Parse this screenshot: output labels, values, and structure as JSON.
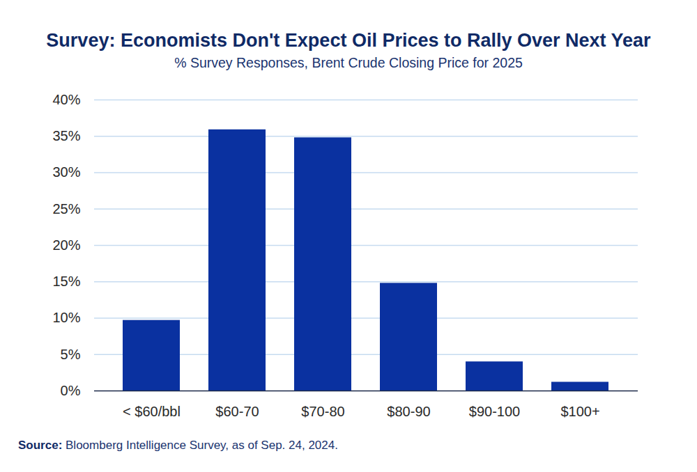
{
  "chart_data": {
    "type": "bar",
    "title": "Survey: Economists Don't Expect Oil Prices to Rally Over Next Year",
    "subtitle": "% Survey Responses, Brent Crude Closing Price for 2025",
    "caption": {
      "label": "Source:",
      "text": "Bloomberg Intelligence Survey, as of Sep. 24, 2024."
    },
    "categories": [
      "< $60/bbl",
      "$60-70",
      "$70-80",
      "$80-90",
      "$90-100",
      "$100+"
    ],
    "values": [
      9.7,
      35.9,
      34.8,
      14.8,
      4.0,
      1.2
    ],
    "color": "#0a31a0",
    "ylim": [
      0,
      40
    ],
    "yticks": [
      {
        "value": 0,
        "label": "0%"
      },
      {
        "value": 5,
        "label": "5%"
      },
      {
        "value": 10,
        "label": "10%"
      },
      {
        "value": 15,
        "label": "15%"
      },
      {
        "value": 20,
        "label": "20%"
      },
      {
        "value": 25,
        "label": "25%"
      },
      {
        "value": 30,
        "label": "30%"
      },
      {
        "value": 35,
        "label": "35%"
      },
      {
        "value": 40,
        "label": "40%"
      }
    ],
    "grid": true
  }
}
